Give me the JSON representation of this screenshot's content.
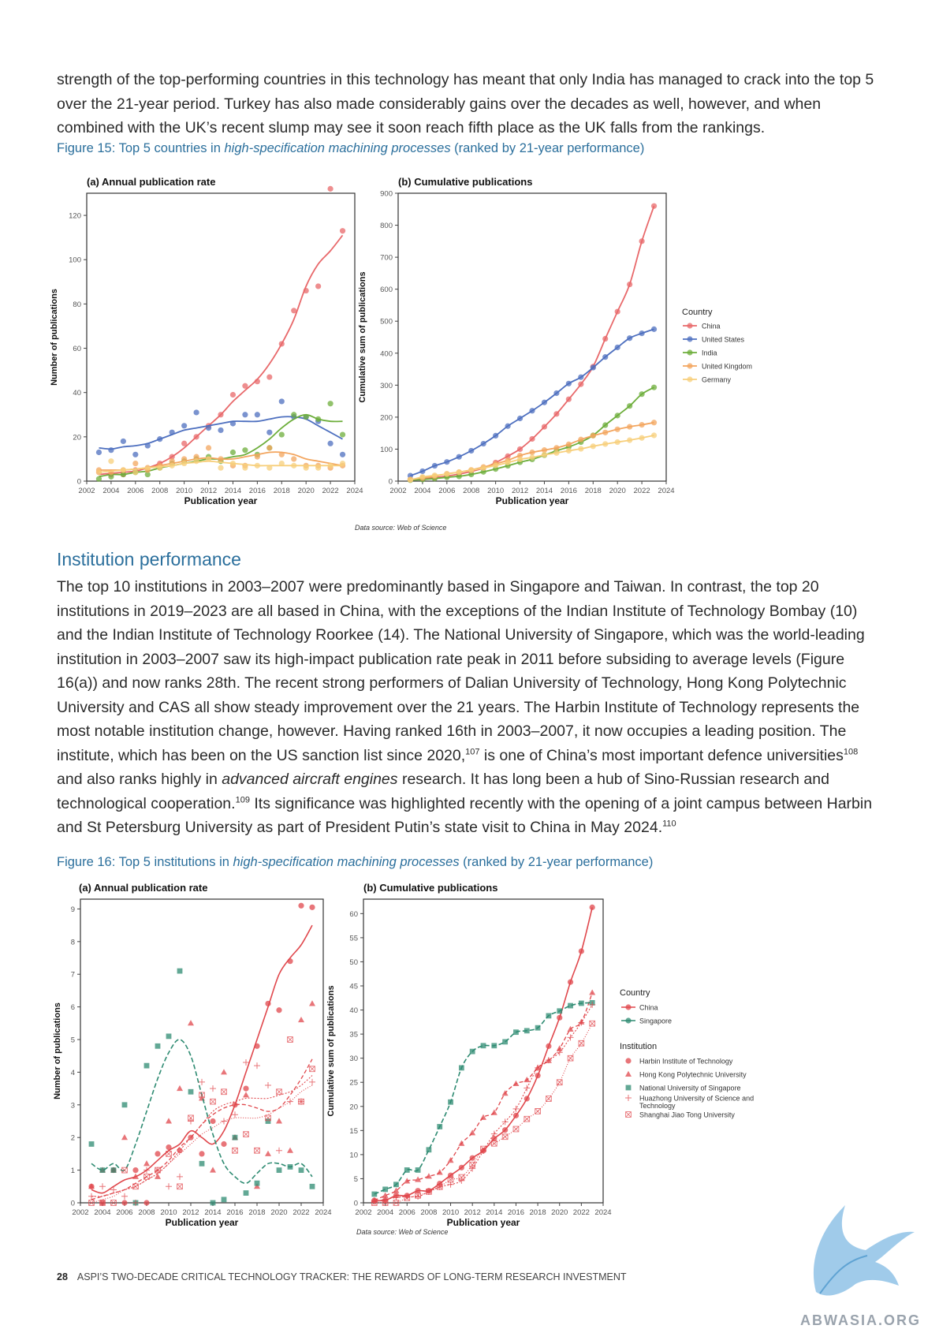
{
  "intro_text": "strength of the top-performing countries in this technology has meant that only India has managed to crack into the top 5 over the 21-year period. Turkey has also made considerably gains over the decades as well, however, and when combined with the UK’s recent slump may see it soon reach fifth place as the UK falls from the rankings.",
  "fig15": {
    "caption_prefix": "Figure 15:  Top 5 countries in ",
    "caption_italic": "high-specification machining processes",
    "caption_suffix": " (ranked by 21-year performance)",
    "source": "Data source: Web of Science",
    "legend_title": "Country",
    "legend": [
      "China",
      "United States",
      "India",
      "United Kingdom",
      "Germany"
    ],
    "colors": {
      "China": "#e8686a",
      "United States": "#4d6fbf",
      "India": "#6dae3b",
      "United Kingdom": "#f3a55e",
      "Germany": "#f7cf7b"
    }
  },
  "section_heading": "Institution performance",
  "body": {
    "part1": "The top 10 institutions in 2003–2007 were predominantly based in Singapore and Taiwan. In contrast, the top 20 institutions in 2019–2023 are all based in China, with the exceptions of the Indian Institute of Technology Bombay (10) and the Indian Institute of Technology Roorkee (14). The National University of Singapore, which was the world-leading institution in 2003–2007 saw its high-impact publication rate peak in 2011 before subsiding to average levels (Figure 16(a)) and now ranks 28th. The recent strong performers of Dalian University of Technology, Hong Kong Polytechnic University and CAS all show steady improvement over the 21 years. The Harbin Institute of Technology represents the most notable institution change, however. Having ranked 16th in 2003–2007, it now occupies a leading position. The institute, which has been on the US sanction list since 2020,",
    "ref1": "107",
    "part2": " is one of China’s most important defence universities",
    "ref2": "108",
    "part3": " and also ranks highly in ",
    "italic": "advanced aircraft engines",
    "part4": " research. It has long been a hub of Sino-Russian research and technological cooperation.",
    "ref3": "109",
    "part5": " Its significance was highlighted recently with the opening of a joint campus between Harbin and St Petersburg University as part of President Putin’s state visit to China in May 2024.",
    "ref4": "110"
  },
  "fig16": {
    "caption_prefix": "Figure 16:  Top 5 institutions in ",
    "caption_italic": "high-specification machining processes",
    "caption_suffix": " (ranked by 21-year performance)",
    "source": "Data source: Web of Science",
    "legend_country_title": "Country",
    "legend_country": [
      "China",
      "Singapore"
    ],
    "legend_inst_title": "Institution",
    "legend_inst": [
      "Harbin Institute of Technology",
      "Hong Kong Polytechnic University",
      "National University of Singapore",
      "Huazhong University of Science and Technology",
      "Shanghai Jiao Tong University"
    ],
    "colors": {
      "China": "#e0474c",
      "Singapore": "#2e8b72"
    }
  },
  "footer": {
    "page": "28",
    "title": "ASPI’S TWO-DECADE CRITICAL TECHNOLOGY TRACKER: THE REWARDS OF LONG-TERM RESEARCH INVESTMENT"
  },
  "watermark": "ABWASIA.ORG",
  "chart_data": [
    {
      "type": "line",
      "title": "(a) Annual publication rate",
      "xlabel": "Publication year",
      "ylabel": "Number of publications",
      "xlim": [
        2002,
        2024
      ],
      "ylim": [
        0,
        130
      ],
      "xticks": [
        2002,
        2004,
        2006,
        2008,
        2010,
        2012,
        2014,
        2016,
        2018,
        2020,
        2022,
        2024
      ],
      "yticks": [
        0,
        20,
        40,
        60,
        80,
        100,
        120
      ],
      "x": [
        2003,
        2004,
        2005,
        2006,
        2007,
        2008,
        2009,
        2010,
        2011,
        2012,
        2013,
        2014,
        2015,
        2016,
        2017,
        2018,
        2019,
        2020,
        2021,
        2022,
        2023
      ],
      "series": [
        {
          "name": "China",
          "values": [
            4,
            3,
            3,
            5,
            6,
            8,
            11,
            17,
            20,
            25,
            30,
            39,
            43,
            45,
            47,
            62,
            77,
            86,
            88,
            132,
            113
          ],
          "fit": [
            3,
            3.5,
            4,
            4.5,
            6,
            8,
            11,
            15,
            20,
            25,
            30,
            36,
            41,
            46,
            53,
            62,
            73,
            88,
            98,
            104,
            111
          ]
        },
        {
          "name": "United States",
          "values": [
            13,
            14,
            18,
            12,
            16,
            19,
            22,
            25,
            31,
            24,
            23,
            26,
            30,
            30,
            22,
            36,
            29,
            29,
            27,
            17,
            12
          ],
          "fit": [
            15,
            14.5,
            15.5,
            16,
            17,
            19,
            21,
            23,
            24,
            25,
            26,
            27,
            27,
            27,
            28,
            29,
            29,
            28,
            25,
            22,
            19
          ]
        },
        {
          "name": "India",
          "values": [
            1,
            2,
            3,
            4,
            3,
            6,
            8,
            9,
            10,
            11,
            9,
            13,
            14,
            12,
            15,
            21,
            30,
            29,
            28,
            35,
            21
          ],
          "fit": [
            2,
            3,
            3,
            4,
            4.5,
            6,
            7,
            8,
            9,
            10,
            10,
            11,
            12,
            15,
            19,
            24,
            28,
            30,
            28,
            27,
            27
          ]
        },
        {
          "name": "United Kingdom",
          "values": [
            5,
            4,
            5,
            8,
            5,
            7,
            9,
            10,
            11,
            15,
            10,
            7,
            7,
            11,
            15,
            12,
            10,
            7,
            7,
            6,
            7
          ],
          "fit": [
            5,
            5,
            5,
            5.5,
            6,
            7,
            8,
            9,
            10,
            10.5,
            10,
            10,
            11,
            12,
            13,
            13,
            12,
            10,
            9,
            8,
            7
          ]
        },
        {
          "name": "Germany",
          "values": [
            4,
            9,
            5,
            4,
            6,
            6,
            7,
            8,
            9,
            10,
            6,
            8,
            6,
            7,
            6,
            8,
            7,
            6,
            6,
            7,
            8
          ],
          "fit": [
            4,
            4.5,
            5,
            5.5,
            6,
            6.5,
            7,
            8,
            8.5,
            9,
            8.5,
            8,
            7.5,
            7,
            7,
            7,
            7,
            7,
            7,
            7,
            7
          ]
        }
      ]
    },
    {
      "type": "line",
      "title": "(b) Cumulative publications",
      "xlabel": "Publication year",
      "ylabel": "Cumulative sum of publications",
      "xlim": [
        2002,
        2024
      ],
      "ylim": [
        0,
        900
      ],
      "xticks": [
        2002,
        2004,
        2006,
        2008,
        2010,
        2012,
        2014,
        2016,
        2018,
        2020,
        2022,
        2024
      ],
      "yticks": [
        0,
        100,
        200,
        300,
        400,
        500,
        600,
        700,
        800,
        900
      ],
      "x": [
        2003,
        2004,
        2005,
        2006,
        2007,
        2008,
        2009,
        2010,
        2011,
        2012,
        2013,
        2014,
        2015,
        2016,
        2017,
        2018,
        2019,
        2020,
        2021,
        2022,
        2023
      ],
      "series": [
        {
          "name": "China",
          "values": [
            5,
            8,
            11,
            16,
            22,
            30,
            41,
            58,
            78,
            100,
            132,
            170,
            210,
            256,
            303,
            358,
            445,
            530,
            615,
            750,
            860
          ]
        },
        {
          "name": "United States",
          "values": [
            17,
            31,
            48,
            60,
            76,
            95,
            117,
            142,
            172,
            196,
            220,
            246,
            275,
            305,
            325,
            355,
            388,
            418,
            447,
            462,
            475
          ]
        },
        {
          "name": "India",
          "values": [
            3,
            5,
            8,
            12,
            15,
            21,
            29,
            38,
            48,
            59,
            68,
            81,
            95,
            107,
            122,
            143,
            175,
            205,
            235,
            272,
            293
          ]
        },
        {
          "name": "United Kingdom",
          "values": [
            5,
            10,
            15,
            23,
            28,
            35,
            44,
            54,
            65,
            80,
            90,
            97,
            104,
            115,
            130,
            142,
            152,
            162,
            170,
            176,
            183
          ]
        },
        {
          "name": "Germany",
          "values": [
            4,
            13,
            18,
            22,
            28,
            34,
            41,
            49,
            58,
            68,
            74,
            82,
            88,
            95,
            101,
            109,
            116,
            122,
            128,
            135,
            143
          ]
        }
      ]
    },
    {
      "type": "line",
      "title": "(a) Annual publication rate",
      "xlabel": "Publication year",
      "ylabel": "Number of publications",
      "xlim": [
        2002,
        2024
      ],
      "ylim": [
        0,
        9.3
      ],
      "xticks": [
        2002,
        2004,
        2006,
        2008,
        2010,
        2012,
        2014,
        2016,
        2018,
        2020,
        2022,
        2024
      ],
      "yticks": [
        0,
        1,
        2,
        3,
        4,
        5,
        6,
        7,
        8,
        9
      ],
      "x": [
        2003,
        2004,
        2005,
        2006,
        2007,
        2008,
        2009,
        2010,
        2011,
        2012,
        2013,
        2014,
        2015,
        2016,
        2017,
        2018,
        2019,
        2020,
        2021,
        2022,
        2023
      ],
      "series": [
        {
          "name": "Harbin Institute of Technology",
          "values": [
            0.5,
            0,
            1,
            0,
            1,
            0,
            1.5,
            1.7,
            1.6,
            2,
            1.5,
            2.5,
            1.8,
            3,
            3.5,
            4.8,
            6.1,
            5.9,
            7.4,
            9.1,
            9.05
          ],
          "fit": [
            0.4,
            0.3,
            0.5,
            0.7,
            0.8,
            1.0,
            1.3,
            1.6,
            1.8,
            2.2,
            2.0,
            1.8,
            2.2,
            3.0,
            4.0,
            5.0,
            6.0,
            7.0,
            7.5,
            7.9,
            8.5
          ]
        },
        {
          "name": "Hong Kong Polytechnic University",
          "values": [
            0.5,
            1,
            1,
            2,
            0.8,
            1.2,
            0.8,
            2.5,
            3.5,
            5.5,
            3.2,
            1,
            4,
            2,
            3.3,
            0.5,
            1.5,
            2.5,
            1.6,
            5.6,
            6.1
          ],
          "fit": [
            0.1,
            0.2,
            0.3,
            0.4,
            0.6,
            0.8,
            1.0,
            1.3,
            1.7,
            2.0,
            2.4,
            2.7,
            2.9,
            3.0,
            3.0,
            2.9,
            2.8,
            2.9,
            3.3,
            3.8,
            4.4
          ]
        },
        {
          "name": "National University of Singapore",
          "values": [
            1.8,
            1,
            1,
            3,
            0,
            4.2,
            4.8,
            5.1,
            7.1,
            3.4,
            1.2,
            0,
            0.1,
            2,
            0.3,
            0.6,
            2.5,
            1,
            1.1,
            1,
            0.5
          ],
          "fit": [
            1.2,
            1.0,
            1.2,
            1.0,
            1.8,
            2.8,
            3.8,
            4.6,
            5.0,
            4.5,
            3.3,
            2.1,
            1.2,
            0.8,
            0.6,
            0.9,
            1.2,
            1.2,
            1.1,
            1.2,
            0.8
          ]
        },
        {
          "name": "Huazhong University of Science and Technology",
          "values": [
            0.2,
            0.5,
            0.4,
            0.2,
            0,
            1,
            1,
            0.5,
            0.8,
            2.5,
            3.7,
            3.5,
            2.5,
            2.7,
            4.3,
            4.2,
            3.6,
            1.6,
            3.1,
            3.1,
            3.7
          ],
          "fit": [
            0.2,
            0.2,
            0.3,
            0.4,
            0.5,
            0.7,
            0.9,
            1.2,
            1.6,
            2.0,
            2.4,
            2.8,
            3.0,
            3.1,
            3.2,
            3.2,
            3.2,
            3.3,
            3.4,
            3.6,
            3.9
          ]
        },
        {
          "name": "Shanghai Jiao Tong University",
          "values": [
            0,
            0,
            0,
            1,
            0.5,
            0.8,
            1,
            1.5,
            0.5,
            2.6,
            3.3,
            3.1,
            3.4,
            1.6,
            2.1,
            1.6,
            2.6,
            3.4,
            5.0,
            3.1,
            4.1
          ],
          "fit": [
            0.0,
            0.1,
            0.2,
            0.4,
            0.5,
            0.7,
            0.9,
            1.2,
            1.5,
            1.8,
            2.1,
            2.3,
            2.5,
            2.6,
            2.6,
            2.6,
            2.7,
            2.9,
            3.1,
            3.4,
            3.6
          ]
        }
      ]
    },
    {
      "type": "line",
      "title": "(b) Cumulative publications",
      "xlabel": "Publication year",
      "ylabel": "Cumulative sum of publications",
      "xlim": [
        2002,
        2024
      ],
      "ylim": [
        0,
        63
      ],
      "xticks": [
        2002,
        2004,
        2006,
        2008,
        2010,
        2012,
        2014,
        2016,
        2018,
        2020,
        2022,
        2024
      ],
      "yticks": [
        0,
        5,
        10,
        15,
        20,
        25,
        30,
        35,
        40,
        45,
        50,
        55,
        60
      ],
      "x": [
        2003,
        2004,
        2005,
        2006,
        2007,
        2008,
        2009,
        2010,
        2011,
        2012,
        2013,
        2014,
        2015,
        2016,
        2017,
        2018,
        2019,
        2020,
        2021,
        2022,
        2023
      ],
      "series": [
        {
          "name": "Harbin Institute of Technology",
          "values": [
            0.5,
            0.5,
            1.5,
            1.5,
            2.5,
            2.5,
            4,
            5.7,
            7.3,
            9.3,
            10.8,
            13.3,
            15.1,
            18.1,
            21.6,
            26.4,
            32.5,
            38.4,
            45.8,
            52.2,
            61.3
          ]
        },
        {
          "name": "Hong Kong Polytechnic University",
          "values": [
            0.5,
            1.5,
            2.5,
            4.5,
            4.8,
            5.5,
            6.3,
            8.8,
            12.3,
            14.5,
            17.7,
            18.7,
            22.7,
            24.7,
            25.5,
            28.0,
            29.5,
            32.0,
            36.0,
            37.5,
            43.6
          ]
        },
        {
          "name": "National University of Singapore",
          "values": [
            1.8,
            2.8,
            3.8,
            6.8,
            6.8,
            11.0,
            15.8,
            20.9,
            28.0,
            31.4,
            32.6,
            32.6,
            33.4,
            35.4,
            35.7,
            36.3,
            38.8,
            39.8,
            40.9,
            41.4,
            41.5
          ]
        },
        {
          "name": "Huazhong University of Science and Technology",
          "values": [
            0.2,
            0.7,
            1.1,
            1.3,
            1.3,
            2.3,
            3.3,
            3.8,
            4.6,
            7.1,
            10.8,
            14.3,
            16.8,
            19.5,
            23.8,
            28.0,
            29.6,
            31.2,
            34.3,
            37.4,
            41.1
          ]
        },
        {
          "name": "Shanghai Jiao Tong University",
          "values": [
            0,
            0,
            0,
            1,
            1.5,
            2.3,
            3.3,
            4.8,
            5.3,
            7.9,
            11.2,
            12.3,
            13.7,
            15.3,
            17.4,
            19.0,
            21.6,
            25.0,
            30.0,
            33.1,
            37.2
          ]
        }
      ]
    }
  ]
}
